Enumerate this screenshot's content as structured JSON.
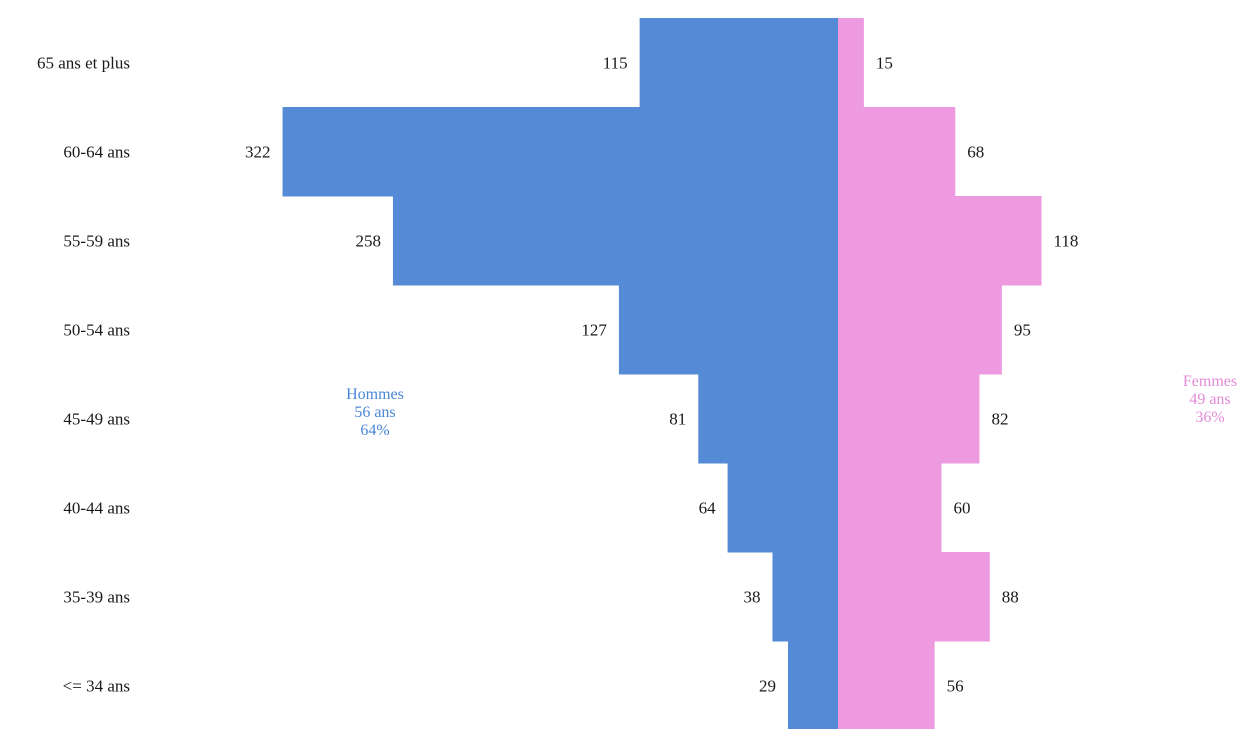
{
  "chart_data": {
    "type": "bar",
    "orientation": "horizontal-pyramid",
    "categories": [
      "65 ans et plus",
      "60-64 ans",
      "55-59 ans",
      "50-54 ans",
      "45-49 ans",
      "40-44 ans",
      "35-39 ans",
      "<= 34 ans"
    ],
    "series": [
      {
        "name": "Hommes",
        "values": [
          115,
          322,
          258,
          127,
          81,
          64,
          38,
          29
        ],
        "color": "#558bd6"
      },
      {
        "name": "Femmes",
        "values": [
          15,
          68,
          118,
          95,
          82,
          60,
          88,
          56
        ],
        "color": "#ee9ae0"
      }
    ],
    "annotations": {
      "hommes": {
        "name": "Hommes",
        "age": "56 ans",
        "share": "64%",
        "color": "#4a86d8"
      },
      "femmes": {
        "name": "Femmes",
        "age": "49 ans",
        "share": "36%",
        "color": "#e38bd8"
      }
    },
    "title": "",
    "xlabel": "",
    "ylabel": "",
    "grid": false
  }
}
